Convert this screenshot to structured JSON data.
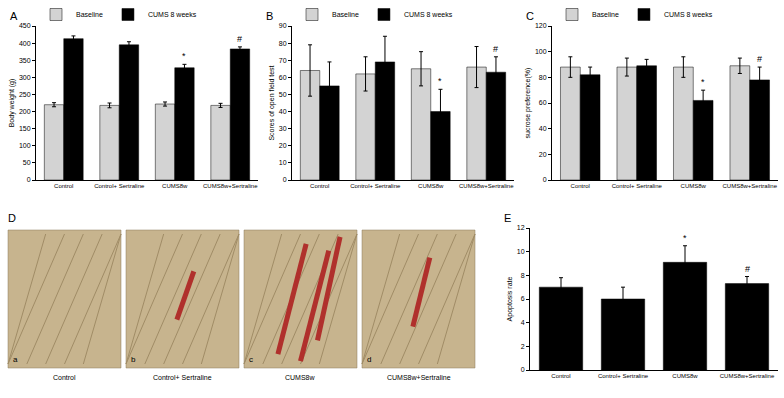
{
  "chart_data": [
    {
      "type": "bar",
      "title": "A",
      "categories": [
        "Control",
        "Control+ Sertraline",
        "CUMS8w",
        "CUMS8w+Sertraline"
      ],
      "series": [
        {
          "name": "Baseline",
          "color": "#d3d3d3",
          "values": [
            220,
            218,
            222,
            218
          ],
          "error": [
            6,
            7,
            6,
            6
          ]
        },
        {
          "name": "CUMS 8 weeks",
          "color": "#000000",
          "values": [
            413,
            395,
            328,
            383
          ],
          "error": [
            8,
            9,
            10,
            6
          ]
        }
      ],
      "y_label": "Body weight (g)",
      "ylim": [
        0,
        450
      ],
      "yticks": [
        0,
        50,
        100,
        150,
        200,
        250,
        300,
        350,
        400,
        450
      ],
      "grid": false,
      "legend": "upper left",
      "annotations": [
        {
          "text": "*",
          "category": "CUMS8w",
          "series": "CUMS 8 weeks"
        },
        {
          "text": "#",
          "category": "CUMS8w+Sertraline",
          "series": "CUMS 8 weeks"
        }
      ]
    },
    {
      "type": "bar",
      "title": "B",
      "categories": [
        "Control",
        "Control+ Sertraline",
        "CUMS8w",
        "CUMS8w+Sertraline"
      ],
      "series": [
        {
          "name": "Baseline",
          "color": "#d3d3d3",
          "values": [
            64,
            62,
            65,
            66
          ],
          "error": [
            15,
            10,
            10,
            12
          ]
        },
        {
          "name": "CUMS 8 weeks",
          "color": "#000000",
          "values": [
            55,
            69,
            40,
            63
          ],
          "error": [
            14,
            15,
            13,
            9
          ]
        }
      ],
      "y_label": "Scores of open field test",
      "ylim": [
        0,
        90
      ],
      "yticks": [
        0,
        10,
        20,
        30,
        40,
        50,
        60,
        70,
        80,
        90
      ],
      "grid": false,
      "legend": "upper left",
      "annotations": [
        {
          "text": "*",
          "category": "CUMS8w",
          "series": "CUMS 8 weeks"
        },
        {
          "text": "#",
          "category": "CUMS8w+Sertraline",
          "series": "CUMS 8 weeks"
        }
      ]
    },
    {
      "type": "bar",
      "title": "C",
      "categories": [
        "Control",
        "Control+ Sertraline",
        "CUMS8w",
        "CUMS8w+Sertraline"
      ],
      "series": [
        {
          "name": "Baseline",
          "color": "#d3d3d3",
          "values": [
            88,
            88,
            88,
            89
          ],
          "error": [
            8,
            7,
            8,
            6
          ]
        },
        {
          "name": "CUMS 8 weeks",
          "color": "#000000",
          "values": [
            82,
            89,
            62,
            78
          ],
          "error": [
            6,
            5,
            8,
            10
          ]
        }
      ],
      "y_label": "sucrose preference(%)",
      "ylim": [
        0,
        120
      ],
      "yticks": [
        0,
        20,
        40,
        60,
        80,
        100,
        120
      ],
      "grid": false,
      "legend": "upper left",
      "annotations": [
        {
          "text": "*",
          "category": "CUMS8w",
          "series": "CUMS 8 weeks"
        },
        {
          "text": "#",
          "category": "CUMS8w+Sertraline",
          "series": "CUMS 8 weeks"
        }
      ]
    },
    {
      "type": "bar",
      "title": "E",
      "categories": [
        "Control",
        "Control+ Sertraline",
        "CUMS8w",
        "CUMS8w+Sertraline"
      ],
      "values": [
        7,
        6,
        9.1,
        7.3
      ],
      "error": [
        0.8,
        1,
        1.4,
        0.6
      ],
      "color": "#000000",
      "y_label": "Apoptosis rate",
      "ylim": [
        0,
        12
      ],
      "yticks": [
        0,
        2,
        4,
        6,
        8,
        10,
        12
      ],
      "grid": false,
      "annotations": [
        {
          "text": "*",
          "category": "CUMS8w"
        },
        {
          "text": "#",
          "category": "CUMS8w+Sertraline"
        }
      ]
    }
  ],
  "image_panel": {
    "title": "D",
    "images": [
      {
        "label": "a",
        "caption": "Control"
      },
      {
        "label": "b",
        "caption": "Control+ Sertraline"
      },
      {
        "label": "c",
        "caption": "CUMS8w"
      },
      {
        "label": "d",
        "caption": "CUMS8w+Sertraline"
      }
    ]
  }
}
